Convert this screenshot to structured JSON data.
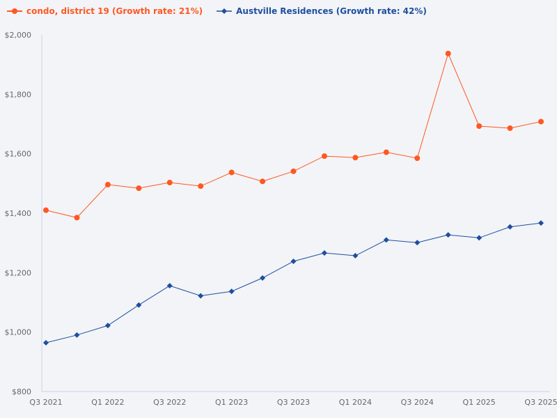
{
  "chart_data": {
    "type": "line",
    "x": [
      "Q3 2021",
      "Q4 2021",
      "Q1 2022",
      "Q2 2022",
      "Q3 2022",
      "Q4 2022",
      "Q1 2023",
      "Q2 2023",
      "Q3 2023",
      "Q4 2023",
      "Q1 2024",
      "Q2 2024",
      "Q3 2024",
      "Q4 2024",
      "Q1 2025",
      "Q2 2025",
      "Q3 2025"
    ],
    "x_tick_labels": [
      "Q3 2021",
      "Q1 2022",
      "Q3 2022",
      "Q1 2023",
      "Q3 2023",
      "Q1 2024",
      "Q3 2024",
      "Q1 2025",
      "Q3 2025"
    ],
    "ylim": [
      800,
      2000
    ],
    "y_ticks": [
      800,
      1000,
      1200,
      1400,
      1600,
      1800,
      2000
    ],
    "y_tick_labels": [
      "$800",
      "$1,000",
      "$1,200",
      "$1,400",
      "$1,600",
      "$1,800",
      "$2,000"
    ],
    "grid": false,
    "legend_position": "top-left",
    "series": [
      {
        "name": "condo, district 19 (Growth rate: 21%)",
        "color": "#ff5722",
        "marker": "circle",
        "values": [
          1410,
          1385,
          1496,
          1484,
          1503,
          1491,
          1537,
          1507,
          1541,
          1592,
          1587,
          1605,
          1585,
          1937,
          1693,
          1686,
          1708
        ]
      },
      {
        "name": "Austville Residences (Growth rate: 42%)",
        "color": "#1f4e9e",
        "marker": "diamond",
        "values": [
          964,
          990,
          1022,
          1091,
          1156,
          1122,
          1137,
          1182,
          1238,
          1266,
          1257,
          1310,
          1301,
          1327,
          1317,
          1354,
          1367
        ]
      }
    ]
  }
}
